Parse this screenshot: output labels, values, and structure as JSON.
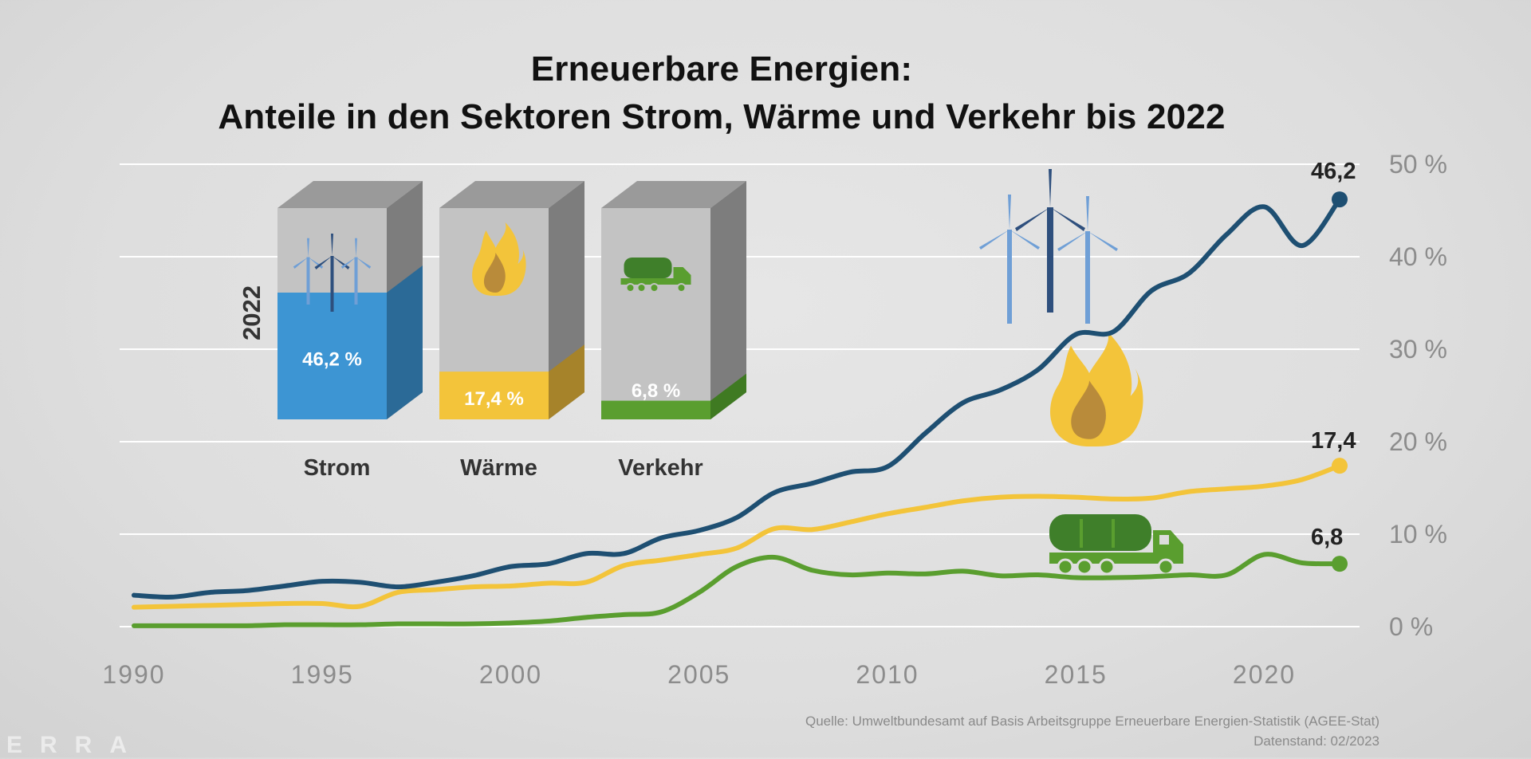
{
  "title_line1": "Erneuerbare Energien:",
  "title_line2": "Anteile in den Sektoren Strom, Wärme und Verkehr bis 2022",
  "source_line1": "Quelle: Umweltbundesamt auf Basis Arbeitsgruppe Erneuerbare Energien-Statistik (AGEE-Stat)",
  "source_line2": "Datenstand: 02/2023",
  "watermark": "ERRA",
  "colors": {
    "strom": "#1e4f72",
    "waerme": "#f3c43a",
    "verkehr": "#5a9e2f",
    "grid": "#ffffff",
    "tick": "#8c8c8c"
  },
  "chart_data": {
    "type": "line",
    "title": "Erneuerbare Energien: Anteile in den Sektoren Strom, Wärme und Verkehr bis 2022",
    "x": [
      1990,
      1991,
      1992,
      1993,
      1994,
      1995,
      1996,
      1997,
      1998,
      1999,
      2000,
      2001,
      2002,
      2003,
      2004,
      2005,
      2006,
      2007,
      2008,
      2009,
      2010,
      2011,
      2012,
      2013,
      2014,
      2015,
      2016,
      2017,
      2018,
      2019,
      2020,
      2021,
      2022
    ],
    "x_ticks": [
      1990,
      1995,
      2000,
      2005,
      2010,
      2015,
      2020
    ],
    "ylim": [
      0,
      50
    ],
    "y_ticks": [
      0,
      10,
      20,
      30,
      40,
      50
    ],
    "y_tick_labels": [
      "0 %",
      "10 %",
      "20 %",
      "30 %",
      "40 %",
      "50 %"
    ],
    "grid": true,
    "series": [
      {
        "key": "strom",
        "values": [
          3.4,
          3.2,
          3.7,
          3.9,
          4.4,
          4.9,
          4.8,
          4.3,
          4.8,
          5.5,
          6.5,
          6.8,
          7.9,
          7.9,
          9.6,
          10.4,
          11.8,
          14.5,
          15.5,
          16.7,
          17.3,
          20.9,
          24.2,
          25.6,
          27.8,
          31.6,
          31.9,
          36.3,
          38.2,
          42.4,
          45.4,
          41.2,
          46.2
        ]
      },
      {
        "key": "waerme",
        "values": [
          2.1,
          2.2,
          2.3,
          2.4,
          2.5,
          2.5,
          2.2,
          3.7,
          4.0,
          4.3,
          4.4,
          4.7,
          4.8,
          6.6,
          7.2,
          7.8,
          8.5,
          10.6,
          10.5,
          11.3,
          12.2,
          12.9,
          13.6,
          14.0,
          14.1,
          14.0,
          13.8,
          13.9,
          14.6,
          14.9,
          15.2,
          15.9,
          17.4
        ]
      },
      {
        "key": "verkehr",
        "values": [
          0.1,
          0.1,
          0.1,
          0.1,
          0.2,
          0.2,
          0.2,
          0.3,
          0.3,
          0.3,
          0.4,
          0.6,
          1.0,
          1.3,
          1.6,
          3.7,
          6.5,
          7.5,
          6.1,
          5.6,
          5.8,
          5.7,
          6.0,
          5.5,
          5.6,
          5.3,
          5.3,
          5.4,
          5.6,
          5.6,
          7.8,
          6.9,
          6.8
        ]
      }
    ],
    "end_labels": {
      "strom": "46,2",
      "waerme": "17,4",
      "verkehr": "6,8"
    },
    "inset_2022": {
      "year_label": "2022",
      "bars": [
        {
          "key": "strom",
          "name": "Strom",
          "value": 46.2,
          "label": "46,2 %",
          "icon": "wind-turbine-icon"
        },
        {
          "key": "waerme",
          "name": "Wärme",
          "value": 17.4,
          "label": "17,4 %",
          "icon": "flame-icon"
        },
        {
          "key": "verkehr",
          "name": "Verkehr",
          "value": 6.8,
          "label": "6,8 %",
          "icon": "tanker-truck-icon"
        }
      ]
    }
  }
}
